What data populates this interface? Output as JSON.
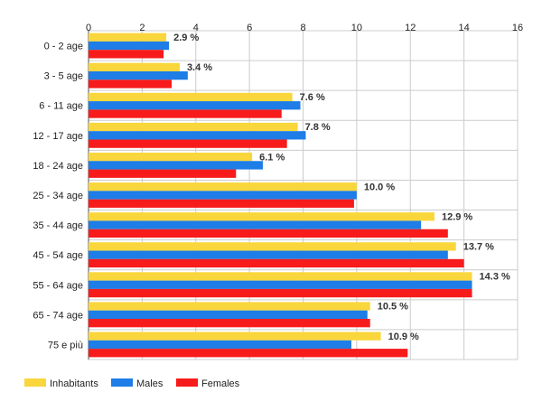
{
  "chart_data": {
    "type": "bar",
    "orientation": "horizontal",
    "categories": [
      "0 - 2 age",
      "3 - 5 age",
      "6 - 11 age",
      "12 - 17 age",
      "18 - 24 age",
      "25 - 34 age",
      "35 - 44 age",
      "45 - 54 age",
      "55 - 64 age",
      "65 - 74 age",
      "75 e più"
    ],
    "series": [
      {
        "name": "Inhabitants",
        "color": "#f9d63c",
        "values": [
          2.9,
          3.4,
          7.6,
          7.8,
          6.1,
          10.0,
          12.9,
          13.7,
          14.3,
          10.5,
          10.9
        ]
      },
      {
        "name": "Males",
        "color": "#1e7de6",
        "values": [
          3.0,
          3.7,
          7.9,
          8.1,
          6.5,
          10.0,
          12.4,
          13.4,
          14.3,
          10.4,
          9.8
        ]
      },
      {
        "name": "Females",
        "color": "#f71b1b",
        "values": [
          2.8,
          3.1,
          7.2,
          7.4,
          5.5,
          9.9,
          13.4,
          14.0,
          14.3,
          10.5,
          11.9
        ]
      }
    ],
    "data_labels": [
      "2.9 %",
      "3.4 %",
      "7.6 %",
      "7.8 %",
      "6.1 %",
      "10.0 %",
      "12.9 %",
      "13.7 %",
      "14.3 %",
      "10.5 %",
      "10.9 %"
    ],
    "xlim": [
      0,
      16
    ],
    "xticks": [
      "0",
      "2",
      "4",
      "6",
      "8",
      "10",
      "12",
      "14",
      "16"
    ],
    "xaxis_position": "top",
    "grid": true,
    "legend_position": "bottom-left"
  }
}
